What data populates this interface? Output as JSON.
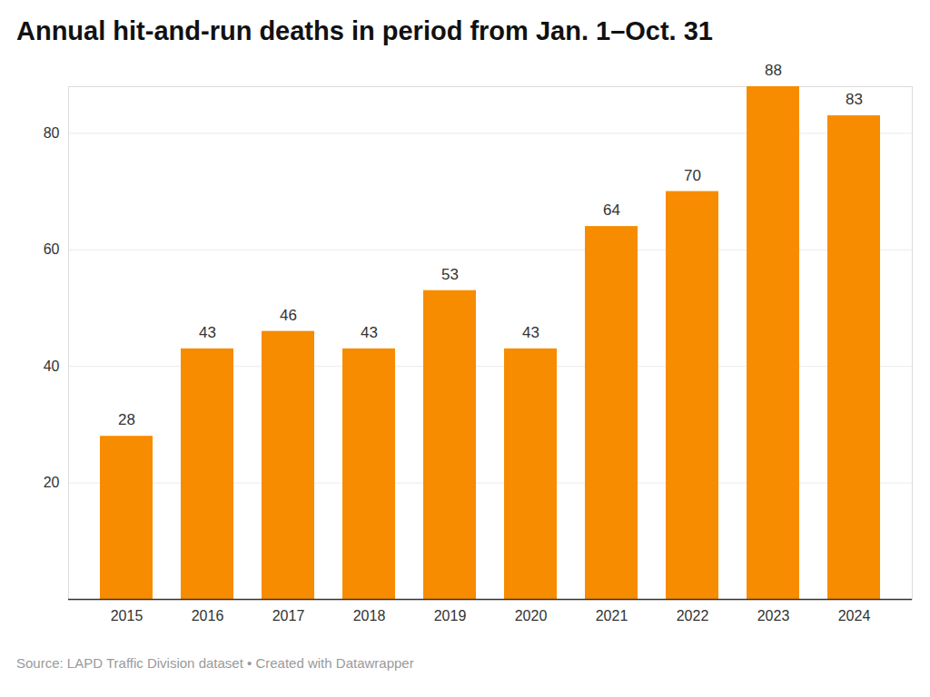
{
  "chart_data": {
    "type": "bar",
    "title": "Annual hit-and-run deaths in period from Jan. 1–Oct. 31",
    "categories": [
      "2015",
      "2016",
      "2017",
      "2018",
      "2019",
      "2020",
      "2021",
      "2022",
      "2023",
      "2024"
    ],
    "values": [
      28,
      43,
      46,
      43,
      53,
      43,
      64,
      70,
      88,
      83
    ],
    "color": "#f78c00",
    "ylim": [
      0,
      88
    ],
    "yticks": [
      20,
      40,
      60,
      80
    ],
    "grid": true,
    "data_labels": true,
    "caption": "Source: LAPD Traffic Division dataset • Created with Datawrapper"
  }
}
